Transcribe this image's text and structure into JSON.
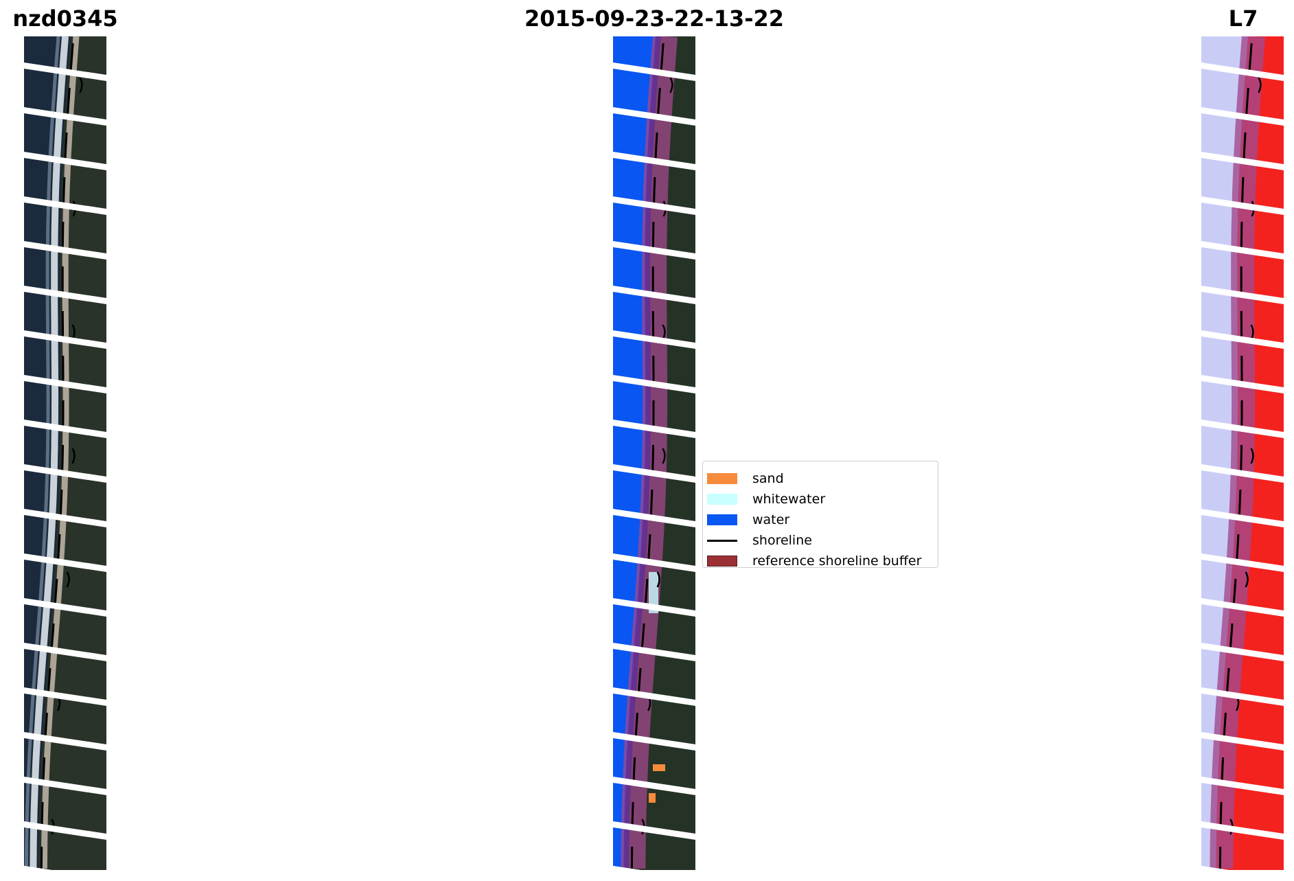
{
  "titles": {
    "site": "nzd0345",
    "date": "2015-09-23-22-13-22",
    "satellite": "L7"
  },
  "legend": {
    "items": [
      {
        "label": "sand",
        "color": "#f68b3b",
        "kind": "patch"
      },
      {
        "label": "whitewater",
        "color": "#c8ffff",
        "kind": "patch"
      },
      {
        "label": "water",
        "color": "#0a56f2",
        "kind": "patch"
      },
      {
        "label": "shoreline",
        "color": "#000000",
        "kind": "line"
      },
      {
        "label": "reference shoreline buffer",
        "color": "#9b3034",
        "kind": "patch"
      }
    ]
  },
  "colors": {
    "ocean": "#1b2a3c",
    "land": "#2a3329",
    "beach": "#b9b0a3",
    "surf": "#e8eef4",
    "class_water": "#0a56f2",
    "class_land": "#253326",
    "buffer": "#a24a8c",
    "mndwi_water": "#c9cdf6",
    "mndwi_land": "#f3221f",
    "shoreline": "#000000"
  }
}
